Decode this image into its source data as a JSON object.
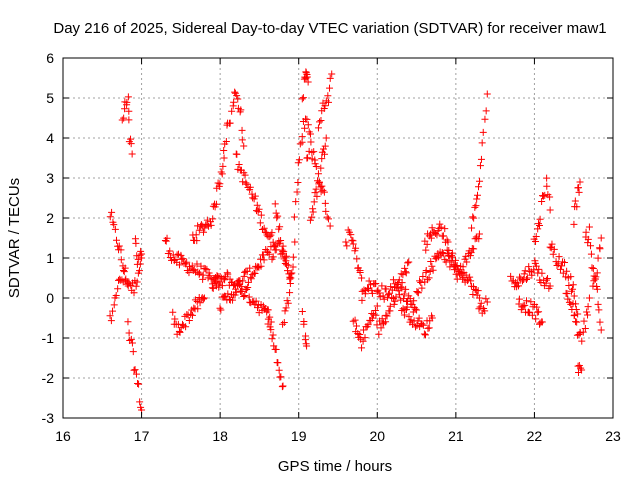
{
  "chart_data": {
    "type": "scatter",
    "title": "Day 216 of 2025, Sidereal Day-to-day VTEC variation (SDTVAR) for receiver maw1",
    "xlabel": "GPS time / hours",
    "ylabel": "SDTVAR / TECUs",
    "xlim": [
      16,
      23
    ],
    "ylim": [
      -3,
      6
    ],
    "xticks": [
      "16",
      "17",
      "18",
      "19",
      "20",
      "21",
      "22",
      "23"
    ],
    "yticks": [
      "-3",
      "-2",
      "-1",
      "0",
      "1",
      "2",
      "3",
      "4",
      "5",
      "6"
    ],
    "grid": true,
    "marker": "+",
    "colors": {
      "points": "#ff0000",
      "axes": "#000000",
      "grid": "#a0a0a0"
    },
    "series": [
      {
        "name": "SDTVAR",
        "segments": [
          {
            "x": [
              16.6,
              16.65,
              16.72,
              16.8,
              16.9,
              17.0
            ],
            "y": [
              2.1,
              1.7,
              1.2,
              0.5,
              0.2,
              1.0
            ]
          },
          {
            "x": [
              16.6,
              16.65,
              16.72,
              16.78,
              16.83
            ],
            "y": [
              -0.6,
              0.0,
              0.4,
              0.5,
              0.3
            ]
          },
          {
            "x": [
              16.76,
              16.79,
              16.83,
              16.85,
              16.88
            ],
            "y": [
              4.4,
              4.8,
              4.9,
              4.0,
              3.6
            ]
          },
          {
            "x": [
              16.83,
              16.88,
              16.92,
              16.96,
              17.0
            ],
            "y": [
              -0.7,
              -1.3,
              -1.8,
              -2.3,
              -2.8
            ]
          },
          {
            "x": [
              16.92,
              16.95,
              17.0
            ],
            "y": [
              1.5,
              0.9,
              1.1
            ]
          },
          {
            "x": [
              17.3,
              17.4,
              17.5,
              17.6,
              17.8,
              17.9,
              18.0
            ],
            "y": [
              1.5,
              1.0,
              0.9,
              0.8,
              0.6,
              0.4,
              0.4
            ]
          },
          {
            "x": [
              17.4,
              17.45,
              17.55,
              17.65,
              17.8
            ],
            "y": [
              -0.5,
              -0.8,
              -0.6,
              -0.3,
              0.0
            ]
          },
          {
            "x": [
              17.65,
              17.8,
              17.9,
              17.95,
              18.0,
              18.05
            ],
            "y": [
              1.5,
              1.8,
              2.0,
              2.5,
              3.0,
              3.5
            ]
          },
          {
            "x": [
              18.05,
              18.1,
              18.15,
              18.2,
              18.25,
              18.3
            ],
            "y": [
              3.8,
              4.3,
              4.6,
              5.2,
              4.8,
              3.8
            ]
          },
          {
            "x": [
              18.2,
              18.3,
              18.4,
              18.5,
              18.6,
              18.7,
              18.8,
              18.9
            ],
            "y": [
              3.5,
              3.0,
              2.6,
              2.1,
              1.6,
              1.4,
              1.2,
              0.6
            ]
          },
          {
            "x": [
              18.0,
              18.1,
              18.2,
              18.3,
              18.4,
              18.55,
              18.7
            ],
            "y": [
              -0.2,
              0.0,
              0.2,
              0.5,
              0.6,
              1.0,
              1.2
            ]
          },
          {
            "x": [
              17.9,
              18.0,
              18.1,
              18.2,
              18.35,
              18.5,
              18.65
            ],
            "y": [
              0.3,
              0.4,
              0.5,
              0.3,
              0.1,
              -0.2,
              -0.6
            ]
          },
          {
            "x": [
              18.6,
              18.65,
              18.7,
              18.75,
              18.8
            ],
            "y": [
              -0.2,
              -0.8,
              -1.2,
              -1.8,
              -2.2
            ]
          },
          {
            "x": [
              18.7,
              18.75,
              18.8,
              18.85,
              18.9
            ],
            "y": [
              2.2,
              1.8,
              1.2,
              0.8,
              0.5
            ]
          },
          {
            "x": [
              18.8,
              18.85,
              18.9,
              18.95
            ],
            "y": [
              -0.6,
              -0.2,
              0.5,
              1.4
            ]
          },
          {
            "x": [
              18.95,
              19.0,
              19.05,
              19.1,
              19.15
            ],
            "y": [
              2.0,
              3.3,
              4.2,
              4.5,
              4.1
            ]
          },
          {
            "x": [
              19.05,
              19.08,
              19.1,
              19.12
            ],
            "y": [
              5.0,
              5.5,
              5.6,
              5.4
            ]
          },
          {
            "x": [
              19.1,
              19.15,
              19.2,
              19.25,
              19.3,
              19.35,
              19.4
            ],
            "y": [
              3.6,
              3.8,
              3.4,
              3.0,
              2.7,
              2.3,
              1.8
            ]
          },
          {
            "x": [
              19.15,
              19.2,
              19.25,
              19.3,
              19.35
            ],
            "y": [
              2.0,
              2.4,
              2.8,
              3.5,
              4.0
            ]
          },
          {
            "x": [
              19.25,
              19.32,
              19.38,
              19.42
            ],
            "y": [
              4.4,
              4.8,
              5.0,
              5.6
            ]
          },
          {
            "x": [
              19.05,
              19.08,
              19.1
            ],
            "y": [
              -0.5,
              -0.9,
              -1.2
            ]
          },
          {
            "x": [
              19.6,
              19.65,
              19.7,
              19.75,
              19.8
            ],
            "y": [
              1.4,
              1.6,
              1.3,
              0.9,
              0.5
            ]
          },
          {
            "x": [
              19.7,
              19.75,
              19.8,
              19.9,
              20.0
            ],
            "y": [
              -0.6,
              -0.9,
              -1.1,
              -0.6,
              -0.2
            ]
          },
          {
            "x": [
              19.8,
              19.9,
              20.0,
              20.1,
              20.2,
              20.3,
              20.4,
              20.5
            ],
            "y": [
              0.0,
              0.3,
              0.2,
              0.1,
              0.3,
              0.2,
              0.0,
              -0.3
            ]
          },
          {
            "x": [
              20.0,
              20.1,
              20.2,
              20.3,
              20.4
            ],
            "y": [
              -0.8,
              -0.5,
              -0.1,
              0.5,
              0.9
            ]
          },
          {
            "x": [
              20.3,
              20.4,
              20.5,
              20.6,
              20.7
            ],
            "y": [
              -0.2,
              -0.4,
              -0.6,
              -0.8,
              -0.5
            ]
          },
          {
            "x": [
              20.5,
              20.6,
              20.7,
              20.8,
              20.9,
              21.0
            ],
            "y": [
              0.2,
              0.5,
              0.8,
              1.2,
              1.0,
              0.8
            ]
          },
          {
            "x": [
              20.6,
              20.7,
              20.8,
              20.9
            ],
            "y": [
              1.3,
              1.6,
              1.8,
              1.4
            ]
          },
          {
            "x": [
              20.9,
              21.0,
              21.1,
              21.2,
              21.3
            ],
            "y": [
              1.1,
              0.9,
              0.6,
              0.3,
              0.0
            ]
          },
          {
            "x": [
              21.0,
              21.1,
              21.2,
              21.3
            ],
            "y": [
              0.5,
              0.8,
              1.2,
              1.6
            ]
          },
          {
            "x": [
              21.2,
              21.25,
              21.3,
              21.35,
              21.4
            ],
            "y": [
              1.9,
              2.2,
              3.0,
              4.0,
              5.1
            ]
          },
          {
            "x": [
              21.3,
              21.35,
              21.4
            ],
            "y": [
              -0.1,
              -0.3,
              -0.1
            ]
          },
          {
            "x": [
              21.7,
              21.8,
              21.9,
              22.0,
              22.1,
              22.2
            ],
            "y": [
              0.5,
              0.4,
              0.6,
              0.8,
              0.5,
              0.3
            ]
          },
          {
            "x": [
              21.8,
              21.9,
              22.0,
              22.05,
              22.1
            ],
            "y": [
              -0.1,
              -0.2,
              -0.3,
              -0.5,
              -0.6
            ]
          },
          {
            "x": [
              22.0,
              22.05,
              22.1,
              22.15,
              22.2
            ],
            "y": [
              1.3,
              1.8,
              2.4,
              2.9,
              2.2
            ]
          },
          {
            "x": [
              22.2,
              22.3,
              22.4,
              22.5,
              22.55
            ],
            "y": [
              1.4,
              0.9,
              0.7,
              0.2,
              -0.4
            ]
          },
          {
            "x": [
              22.4,
              22.5,
              22.55,
              22.6,
              22.65,
              22.7
            ],
            "y": [
              0.0,
              -0.3,
              -0.8,
              -1.0,
              -0.6,
              0.0
            ]
          },
          {
            "x": [
              22.5,
              22.55,
              22.58
            ],
            "y": [
              2.0,
              2.6,
              2.9
            ]
          },
          {
            "x": [
              22.55,
              22.6
            ],
            "y": [
              -1.7,
              -1.8
            ]
          },
          {
            "x": [
              22.65,
              22.7,
              22.75,
              22.8,
              22.85
            ],
            "y": [
              1.4,
              1.7,
              0.6,
              0.2,
              -0.8
            ]
          },
          {
            "x": [
              22.75,
              22.8,
              22.85
            ],
            "y": [
              0.3,
              0.7,
              1.5
            ]
          }
        ]
      }
    ]
  }
}
